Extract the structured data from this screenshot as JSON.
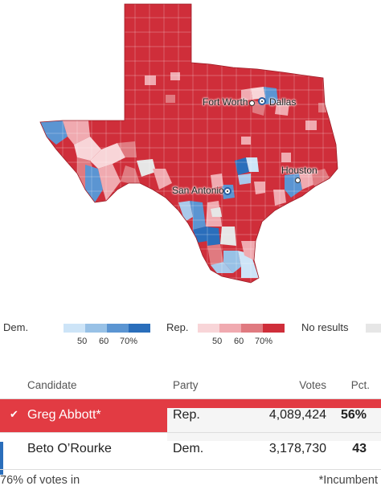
{
  "map": {
    "cities": {
      "fort_worth": "Fort Worth",
      "dallas": "Dallas",
      "houston": "Houston",
      "san_antonio": "San Antonio"
    },
    "colors": {
      "rep_base": "#cf2e3a",
      "rep_light": "#f0aab0",
      "rep_mid": "#e07a80",
      "dem_light": "#a9c9ea",
      "dem_mid": "#5b95d2",
      "dem_dark": "#2a6ebb",
      "no_results": "#e6e6e6"
    }
  },
  "legend": {
    "dem_label": "Dem.",
    "rep_label": "Rep.",
    "no_results_label": "No results",
    "dem_ticks": [
      "50",
      "60",
      "70%"
    ],
    "rep_ticks": [
      "50",
      "60",
      "70%"
    ],
    "dem_colors": [
      "#cde4f7",
      "#98c1e6",
      "#5b95d2",
      "#2a6ebb"
    ],
    "rep_colors": [
      "#f8d5d8",
      "#f0aab0",
      "#e07a80",
      "#cf2e3a"
    ],
    "no_results_color": "#e6e6e6"
  },
  "table": {
    "headers": {
      "candidate": "Candidate",
      "party": "Party",
      "votes": "Votes",
      "pct": "Pct."
    },
    "rows": [
      {
        "name": "Greg Abbott*",
        "party": "Rep.",
        "votes": "4,089,424",
        "pct": "56%",
        "winner": true
      },
      {
        "name": "Beto O’Rourke",
        "party": "Dem.",
        "votes": "3,178,730",
        "pct": "43",
        "winner": false
      }
    ],
    "winner_mark": "✔"
  },
  "footer": {
    "reporting": "76% of votes in",
    "incumbent_note": "*Incumbent"
  }
}
